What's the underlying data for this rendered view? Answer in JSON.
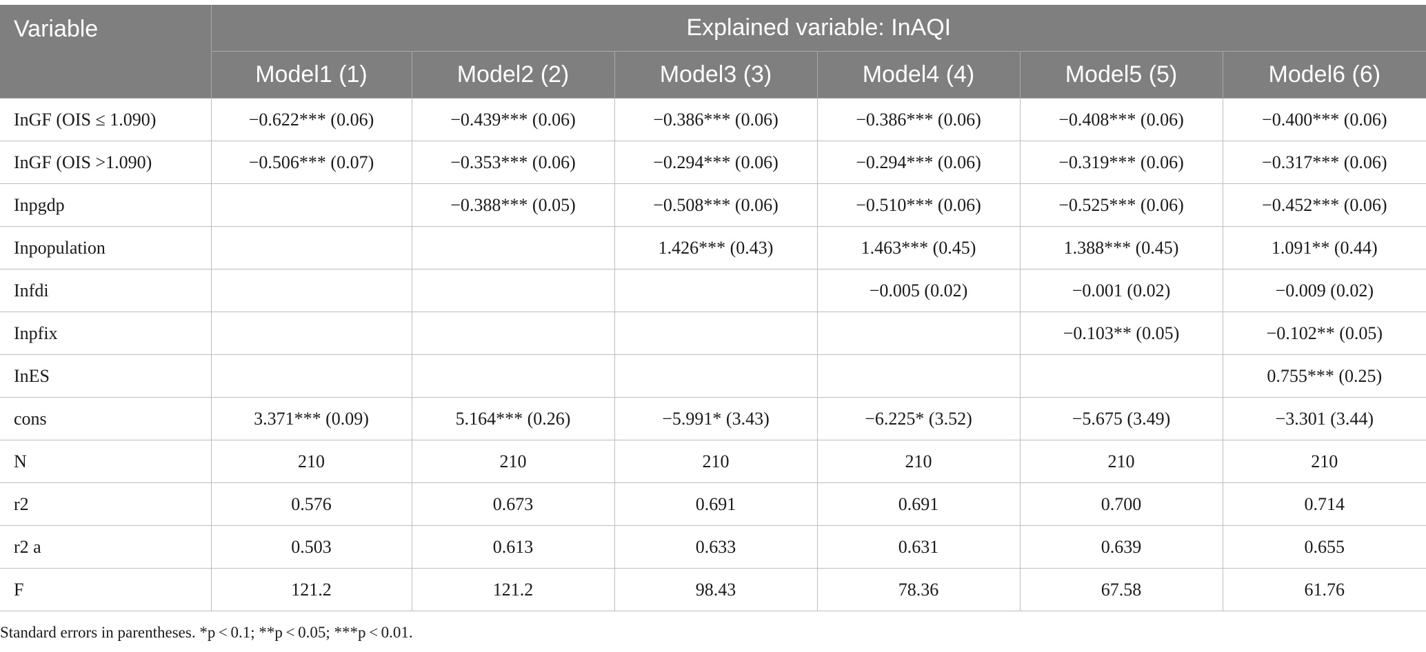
{
  "table": {
    "variable_header": "Variable",
    "group_header": "Explained variable: InAQI",
    "model_headers": [
      "Model1 (1)",
      "Model2 (2)",
      "Model3 (3)",
      "Model4 (4)",
      "Model5 (5)",
      "Model6 (6)"
    ],
    "rows": [
      {
        "variable": "InGF (OIS ≤ 1.090)",
        "cells": [
          "−0.622*** (0.06)",
          "−0.439*** (0.06)",
          "−0.386*** (0.06)",
          "−0.386*** (0.06)",
          "−0.408*** (0.06)",
          "−0.400*** (0.06)"
        ]
      },
      {
        "variable": "InGF (OIS >1.090)",
        "cells": [
          "−0.506*** (0.07)",
          "−0.353*** (0.06)",
          "−0.294*** (0.06)",
          "−0.294*** (0.06)",
          "−0.319*** (0.06)",
          "−0.317*** (0.06)"
        ]
      },
      {
        "variable": "Inpgdp",
        "cells": [
          "",
          "−0.388*** (0.05)",
          "−0.508*** (0.06)",
          "−0.510*** (0.06)",
          "−0.525*** (0.06)",
          "−0.452*** (0.06)"
        ]
      },
      {
        "variable": "Inpopulation",
        "cells": [
          "",
          "",
          "1.426*** (0.43)",
          "1.463*** (0.45)",
          "1.388*** (0.45)",
          "1.091** (0.44)"
        ]
      },
      {
        "variable": "Infdi",
        "cells": [
          "",
          "",
          "",
          "−0.005 (0.02)",
          "−0.001 (0.02)",
          "−0.009 (0.02)"
        ]
      },
      {
        "variable": "Inpfix",
        "cells": [
          "",
          "",
          "",
          "",
          "−0.103** (0.05)",
          "−0.102** (0.05)"
        ]
      },
      {
        "variable": "InES",
        "cells": [
          "",
          "",
          "",
          "",
          "",
          "0.755*** (0.25)"
        ]
      },
      {
        "variable": "cons",
        "cells": [
          "3.371*** (0.09)",
          "5.164*** (0.26)",
          "−5.991* (3.43)",
          "−6.225* (3.52)",
          "−5.675 (3.49)",
          "−3.301 (3.44)"
        ]
      },
      {
        "variable": "N",
        "cells": [
          "210",
          "210",
          "210",
          "210",
          "210",
          "210"
        ]
      },
      {
        "variable": "r2",
        "cells": [
          "0.576",
          "0.673",
          "0.691",
          "0.691",
          "0.700",
          "0.714"
        ]
      },
      {
        "variable": "r2 a",
        "cells": [
          "0.503",
          "0.613",
          "0.633",
          "0.631",
          "0.639",
          "0.655"
        ]
      },
      {
        "variable": "F",
        "cells": [
          "121.2",
          "121.2",
          "98.43",
          "78.36",
          "67.58",
          "61.76"
        ]
      }
    ]
  },
  "footnote": "Standard errors in parentheses. *p < 0.1; **p < 0.05; ***p < 0.01.",
  "colors": {
    "header_background": "#7f7f7f",
    "header_text": "#ffffff",
    "grid_line": "#bdbdbd"
  }
}
